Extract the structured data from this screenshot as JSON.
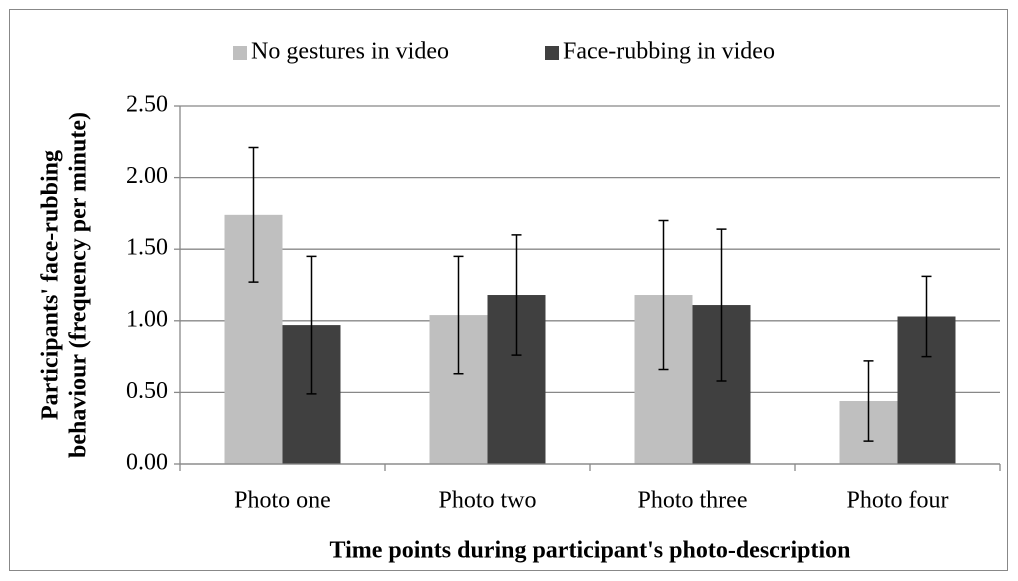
{
  "chart_data": {
    "type": "bar",
    "x_label": "Time points during participant's photo-description",
    "y_label": [
      "Participants' face-rubbing",
      "behaviour (frequency per minute)"
    ],
    "categories": [
      "Photo one",
      "Photo two",
      "Photo three",
      "Photo four"
    ],
    "series": [
      {
        "name": "No gestures in video",
        "color": "#bfbfbf",
        "values": [
          1.74,
          1.04,
          1.18,
          0.44
        ],
        "errors": [
          0.47,
          0.41,
          0.52,
          0.28
        ]
      },
      {
        "name": "Face-rubbing in video",
        "color": "#404040",
        "values": [
          0.97,
          1.18,
          1.11,
          1.03
        ],
        "errors": [
          0.48,
          0.42,
          0.53,
          0.28
        ]
      }
    ],
    "ylim": [
      0,
      2.5
    ],
    "yticks": [
      {
        "value": 0,
        "label": "0.00"
      },
      {
        "value": 0.5,
        "label": "0.50"
      },
      {
        "value": 1,
        "label": "1.00"
      },
      {
        "value": 1.5,
        "label": "1.50"
      },
      {
        "value": 2,
        "label": "2.00"
      },
      {
        "value": 2.5,
        "label": "2.50"
      }
    ],
    "grid": true,
    "legend": "top"
  }
}
